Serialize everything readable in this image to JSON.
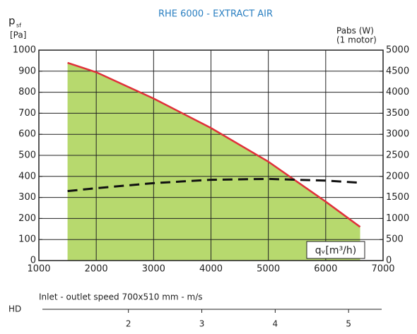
{
  "chart_data": {
    "type": "line",
    "title": "RHE 6000 - EXTRACT AIR",
    "title_color": "#2a7fc1",
    "ylabel": {
      "symbol": "p",
      "subscript": "sf",
      "unit": "[Pa]"
    },
    "y2label": {
      "line1": "Pabs (W)",
      "line2": "(1 motor)"
    },
    "xlabel": "qᵥ[m³/h)",
    "x": [
      1500,
      2000,
      3000,
      4000,
      5000,
      6000,
      6600
    ],
    "series": [
      {
        "color": "#e0303a",
        "fill": "#b7d96e",
        "values": [
          940,
          895,
          770,
          630,
          470,
          280,
          160
        ]
      },
      {
        "color": "#111111",
        "dashed": true,
        "axis": "y2",
        "values": [
          1650,
          1720,
          1840,
          1920,
          1940,
          1900,
          1850
        ]
      }
    ],
    "xlim": [
      1000,
      7000
    ],
    "xticks": [
      1000,
      2000,
      3000,
      4000,
      5000,
      6000,
      7000
    ],
    "ylim": [
      0,
      1000
    ],
    "yticks": [
      0,
      100,
      200,
      300,
      400,
      500,
      600,
      700,
      800,
      900,
      1000
    ],
    "y2lim": [
      0,
      5000
    ],
    "y2ticks": [
      0,
      500,
      1000,
      1500,
      2000,
      2500,
      3000,
      3500,
      4000,
      4500,
      5000
    ],
    "grid": true,
    "secondary_axis": {
      "label": "Inlet - outlet speed 700x510 mm - m/s",
      "name": "HD",
      "xlim": [
        0.78,
        5.47
      ],
      "xticks": [
        2,
        3,
        4,
        5
      ]
    }
  }
}
